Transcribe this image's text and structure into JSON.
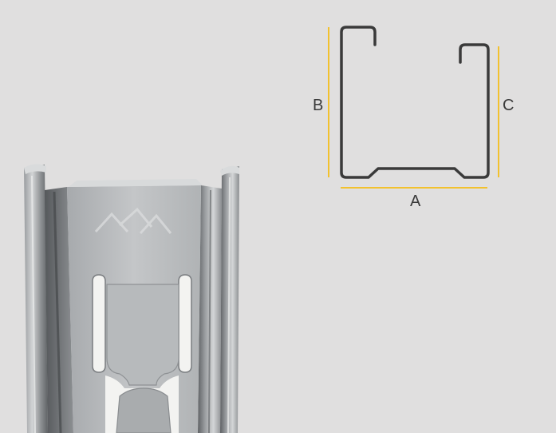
{
  "diagram": {
    "labels": {
      "a": "A",
      "b": "B",
      "c": "C"
    }
  },
  "colors": {
    "background": "#e0dfdf",
    "profile_outline": "#3a3a3a",
    "dimension_line": "#f2c12e",
    "metal_light": "#c9cbcc",
    "metal_mid": "#a8abad",
    "metal_dark": "#6f7274",
    "slot_fill": "#f3f3f1"
  }
}
